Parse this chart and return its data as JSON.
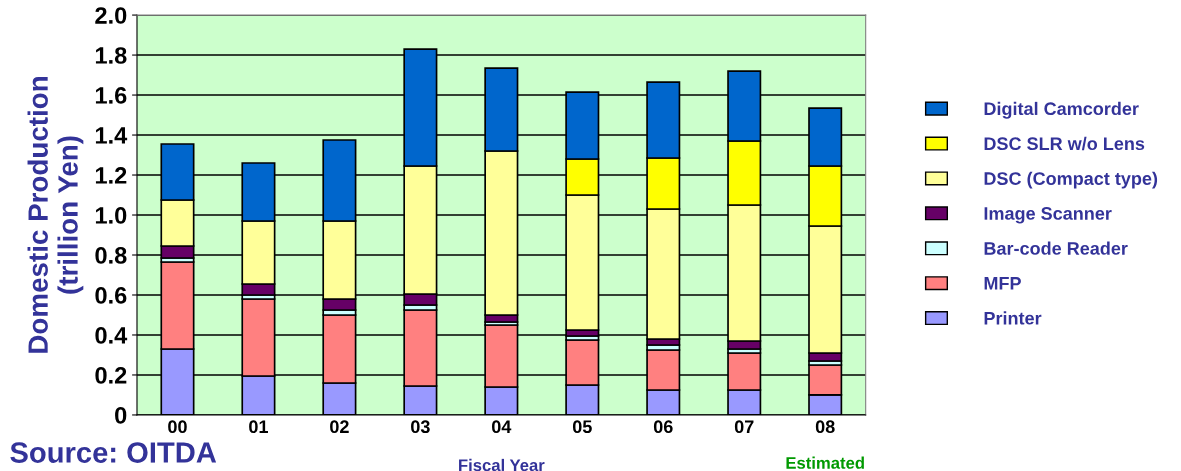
{
  "chart_data": {
    "type": "bar",
    "stacked": true,
    "xlabel": "Fiscal Year",
    "ylabel": "Domestic Production\n(trillion Yen)",
    "categories": [
      "00",
      "01",
      "02",
      "03",
      "04",
      "05",
      "06",
      "07",
      "08"
    ],
    "series": [
      {
        "name": "Printer",
        "color": "#9999ff",
        "values": [
          0.33,
          0.195,
          0.16,
          0.145,
          0.14,
          0.15,
          0.125,
          0.125,
          0.1
        ]
      },
      {
        "name": "MFP",
        "color": "#ff8080",
        "values": [
          0.435,
          0.385,
          0.34,
          0.38,
          0.31,
          0.225,
          0.2,
          0.185,
          0.15
        ]
      },
      {
        "name": "Bar-code Reader",
        "color": "#ccffff",
        "values": [
          0.02,
          0.02,
          0.025,
          0.025,
          0.015,
          0.02,
          0.025,
          0.02,
          0.02
        ]
      },
      {
        "name": "Image Scanner",
        "color": "#660066",
        "values": [
          0.06,
          0.055,
          0.055,
          0.055,
          0.035,
          0.03,
          0.03,
          0.04,
          0.04
        ]
      },
      {
        "name": "DSC (Compact type)",
        "color": "#ffff99",
        "values": [
          0.23,
          0.315,
          0.39,
          0.64,
          0.82,
          0.675,
          0.65,
          0.68,
          0.635
        ]
      },
      {
        "name": "DSC SLR w/o Lens",
        "color": "#ffff00",
        "values": [
          null,
          null,
          null,
          null,
          null,
          0.18,
          0.255,
          0.32,
          0.3
        ]
      },
      {
        "name": "Digital Camcorder",
        "color": "#0066cc",
        "values": [
          0.28,
          0.29,
          0.405,
          0.585,
          0.415,
          0.335,
          0.38,
          0.35,
          0.29
        ]
      }
    ],
    "ylim": [
      0,
      2.0
    ],
    "yticks": [
      {
        "value": 0,
        "label": "0"
      },
      {
        "value": 0.2,
        "label": "0.2"
      },
      {
        "value": 0.4,
        "label": "0.4"
      },
      {
        "value": 0.6,
        "label": "0.6"
      },
      {
        "value": 0.8,
        "label": "0.8"
      },
      {
        "value": 1.0,
        "label": "1.0"
      },
      {
        "value": 1.2,
        "label": "1.2"
      },
      {
        "value": 1.4,
        "label": "1.4"
      },
      {
        "value": 1.6,
        "label": "1.6"
      },
      {
        "value": 1.8,
        "label": "1.8"
      },
      {
        "value": 2.0,
        "label": "2.0"
      }
    ],
    "grid": "y",
    "legend": "right",
    "annotations": [
      "Estimated",
      "Source: OITDA"
    ]
  }
}
